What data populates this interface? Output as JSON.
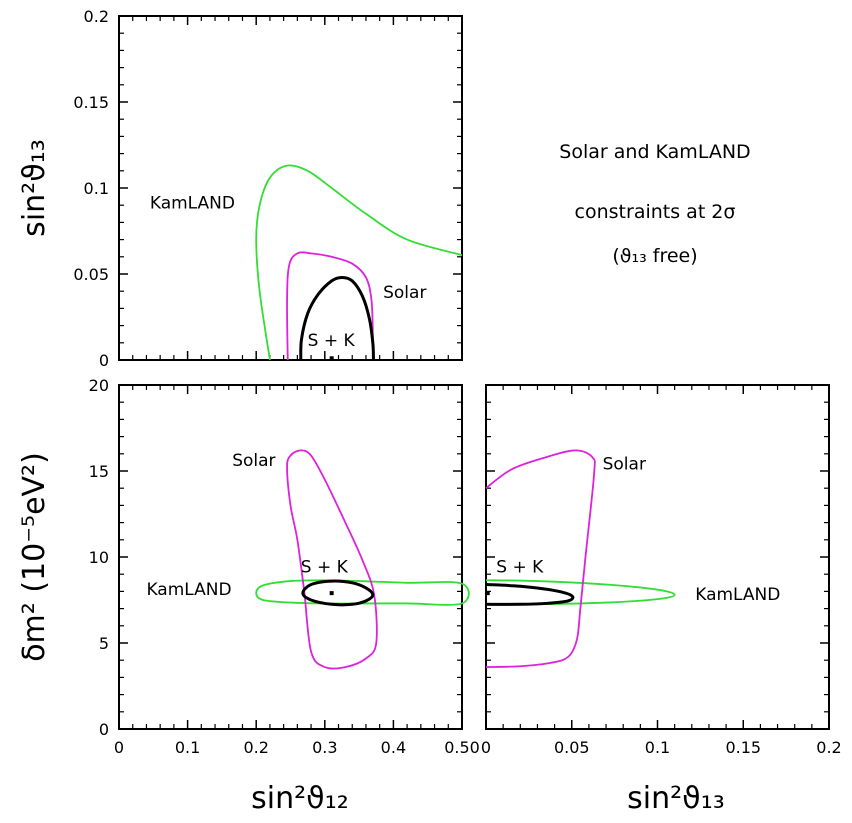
{
  "colors": {
    "kamland": "#33dd33",
    "solar": "#dd22dd",
    "combined": "#000000",
    "frame": "#000000"
  },
  "annotation": {
    "line1": "Solar and KamLAND",
    "line2": "constraints at 2σ",
    "line3": "(ϑ₁₃ free)"
  },
  "chart_data": [
    {
      "id": "top-left",
      "type": "line",
      "xlabel": "",
      "ylabel": "sin²ϑ₁₃",
      "xlim": [
        0,
        0.5
      ],
      "ylim": [
        0,
        0.2
      ],
      "x_ticks": [
        0,
        0.1,
        0.2,
        0.3,
        0.4,
        0.5
      ],
      "y_ticks": [
        0,
        0.05,
        0.1,
        0.15,
        0.2
      ],
      "y_tick_labels": [
        "0",
        "0.05",
        "0.1",
        "0.15",
        "0.2"
      ],
      "series": [
        {
          "name": "KamLAND",
          "color_key": "kamland",
          "closed": false,
          "x": [
            0.22,
            0.205,
            0.2,
            0.205,
            0.22,
            0.245,
            0.275,
            0.31,
            0.36,
            0.42,
            0.5
          ],
          "y": [
            0,
            0.04,
            0.07,
            0.09,
            0.106,
            0.113,
            0.11,
            0.1,
            0.085,
            0.07,
            0.061
          ]
        },
        {
          "name": "Solar",
          "color_key": "solar",
          "closed": false,
          "x": [
            0.246,
            0.245,
            0.248,
            0.26,
            0.28,
            0.31,
            0.34,
            0.36,
            0.368,
            0.37,
            0.37
          ],
          "y": [
            0,
            0.035,
            0.055,
            0.062,
            0.062,
            0.06,
            0.056,
            0.048,
            0.035,
            0.015,
            0
          ]
        },
        {
          "name": "S + K",
          "color_key": "combined",
          "closed": false,
          "x": [
            0.265,
            0.266,
            0.275,
            0.29,
            0.31,
            0.325,
            0.34,
            0.355,
            0.365,
            0.37,
            0.371
          ],
          "y": [
            0,
            0.012,
            0.027,
            0.038,
            0.046,
            0.048,
            0.046,
            0.037,
            0.024,
            0.01,
            0
          ]
        }
      ],
      "best_fit": {
        "x": 0.31,
        "y": 0.001
      },
      "labels": [
        {
          "text": "KamLAND",
          "x": 0.045,
          "y": 0.088
        },
        {
          "text": "Solar",
          "x": 0.385,
          "y": 0.036
        },
        {
          "text": "S + K",
          "x": 0.275,
          "y": 0.008
        }
      ]
    },
    {
      "id": "bottom-left",
      "type": "line",
      "xlabel": "sin²ϑ₁₂",
      "ylabel": "δm²  (10⁻⁵eV²)",
      "xlim": [
        0,
        0.5
      ],
      "ylim": [
        0,
        20
      ],
      "x_ticks": [
        0,
        0.1,
        0.2,
        0.3,
        0.4,
        0.5
      ],
      "x_tick_labels": [
        "0",
        "0.1",
        "0.2",
        "0.3",
        "0.4",
        "0.50"
      ],
      "y_ticks": [
        0,
        5,
        10,
        15,
        20
      ],
      "y_tick_labels": [
        "0",
        "5",
        "10",
        "15",
        "20"
      ],
      "series": [
        {
          "name": "KamLAND",
          "color_key": "kamland",
          "closed": true,
          "x": [
            0.2,
            0.21,
            0.25,
            0.3,
            0.35,
            0.42,
            0.5,
            0.5,
            0.42,
            0.35,
            0.3,
            0.25,
            0.21
          ],
          "y": [
            7.9,
            8.35,
            8.6,
            8.65,
            8.6,
            8.5,
            8.45,
            7.3,
            7.3,
            7.3,
            7.3,
            7.35,
            7.5
          ]
        },
        {
          "name": "Solar",
          "color_key": "solar",
          "closed": true,
          "x": [
            0.245,
            0.25,
            0.265,
            0.28,
            0.3,
            0.33,
            0.355,
            0.372,
            0.375,
            0.36,
            0.33,
            0.3,
            0.28,
            0.27,
            0.26,
            0.25
          ],
          "y": [
            15.2,
            15.9,
            16.2,
            15.9,
            14.5,
            12,
            9.8,
            7.8,
            5,
            4.1,
            3.6,
            3.6,
            4.5,
            8,
            11,
            13
          ]
        },
        {
          "name": "S + K",
          "color_key": "combined",
          "closed": true,
          "x": [
            0.268,
            0.28,
            0.31,
            0.34,
            0.36,
            0.37,
            0.36,
            0.34,
            0.31,
            0.28
          ],
          "y": [
            7.9,
            8.4,
            8.6,
            8.5,
            8.2,
            7.8,
            7.45,
            7.25,
            7.25,
            7.5
          ]
        }
      ],
      "best_fit": {
        "x": 0.31,
        "y": 7.9
      },
      "labels": [
        {
          "text": "Solar",
          "x": 0.165,
          "y": 15.3
        },
        {
          "text": "KamLAND",
          "x": 0.04,
          "y": 7.8
        },
        {
          "text": "S + K",
          "x": 0.265,
          "y": 9.1
        }
      ]
    },
    {
      "id": "bottom-right",
      "type": "line",
      "xlabel": "sin²ϑ₁₃",
      "ylabel": "",
      "xlim": [
        0,
        0.2
      ],
      "ylim": [
        0,
        20
      ],
      "x_ticks": [
        0,
        0.05,
        0.1,
        0.15,
        0.2
      ],
      "x_tick_labels": [
        "0",
        "0.05",
        "0.1",
        "0.15",
        "0.2"
      ],
      "y_ticks": [
        0,
        5,
        10,
        15,
        20
      ],
      "series": [
        {
          "name": "KamLAND",
          "color_key": "kamland",
          "closed": false,
          "x": [
            0,
            0.03,
            0.07,
            0.1,
            0.11,
            0.1,
            0.07,
            0.03,
            0
          ],
          "y": [
            8.65,
            8.6,
            8.4,
            8.1,
            7.8,
            7.55,
            7.35,
            7.25,
            7.25
          ]
        },
        {
          "name": "Solar",
          "color_key": "solar",
          "closed": false,
          "x": [
            0,
            0.015,
            0.035,
            0.052,
            0.062,
            0.063,
            0.058,
            0.055,
            0.053,
            0.048,
            0.038,
            0.02,
            0
          ],
          "y": [
            14,
            15.1,
            15.8,
            16.2,
            15.8,
            14.8,
            10,
            7,
            5.2,
            4.2,
            3.85,
            3.65,
            3.6
          ]
        },
        {
          "name": "S + K",
          "color_key": "combined",
          "closed": false,
          "x": [
            0,
            0.02,
            0.04,
            0.05,
            0.048,
            0.035,
            0.02,
            0
          ],
          "y": [
            8.4,
            8.3,
            8.05,
            7.75,
            7.45,
            7.3,
            7.25,
            7.25
          ]
        }
      ],
      "best_fit": {
        "x": 0.001,
        "y": 7.9
      },
      "labels": [
        {
          "text": "Solar",
          "x": 0.068,
          "y": 15.1
        },
        {
          "text": "KamLAND",
          "x": 0.122,
          "y": 7.5
        },
        {
          "text": "S + K",
          "x": 0.006,
          "y": 9.1
        }
      ]
    }
  ]
}
